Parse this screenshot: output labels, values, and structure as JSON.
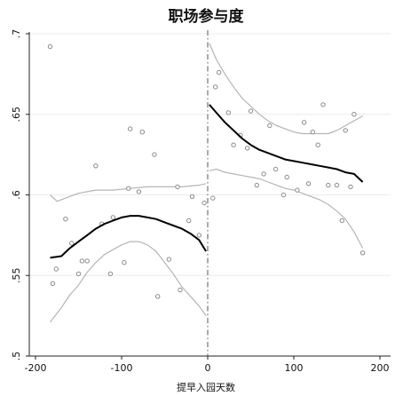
{
  "chart_data": {
    "type": "scatter",
    "title": "职场参与度",
    "xlabel": "提早入园天数",
    "ylabel": "",
    "xlim": [
      -200,
      200
    ],
    "ylim": [
      0.5,
      0.7
    ],
    "x_ticks": [
      -200,
      -100,
      0,
      100,
      200
    ],
    "x_tick_labels": [
      "-200",
      "-100",
      "0",
      "100",
      "200"
    ],
    "y_ticks": [
      0.5,
      0.55,
      0.6,
      0.65,
      0.7
    ],
    "y_tick_labels": [
      ".5",
      ".55",
      ".6",
      ".65",
      ".7"
    ],
    "cutoff_x": 0,
    "grid": true,
    "colors": {
      "points": "#8a8a8a",
      "fit": "#000000",
      "ci": "#b5b5b5",
      "cutoff": "#555555"
    },
    "points": [
      {
        "x": -183,
        "y": 0.692
      },
      {
        "x": -180,
        "y": 0.545
      },
      {
        "x": -176,
        "y": 0.554
      },
      {
        "x": -165,
        "y": 0.585
      },
      {
        "x": -158,
        "y": 0.57
      },
      {
        "x": -150,
        "y": 0.551
      },
      {
        "x": -146,
        "y": 0.559
      },
      {
        "x": -140,
        "y": 0.559
      },
      {
        "x": -130,
        "y": 0.618
      },
      {
        "x": -123,
        "y": 0.582
      },
      {
        "x": -113,
        "y": 0.551
      },
      {
        "x": -110,
        "y": 0.586
      },
      {
        "x": -97,
        "y": 0.558
      },
      {
        "x": -92,
        "y": 0.604
      },
      {
        "x": -90,
        "y": 0.641
      },
      {
        "x": -80,
        "y": 0.602
      },
      {
        "x": -76,
        "y": 0.639
      },
      {
        "x": -62,
        "y": 0.625
      },
      {
        "x": -58,
        "y": 0.537
      },
      {
        "x": -45,
        "y": 0.56
      },
      {
        "x": -35,
        "y": 0.605
      },
      {
        "x": -32,
        "y": 0.541
      },
      {
        "x": -22,
        "y": 0.584
      },
      {
        "x": -18,
        "y": 0.599
      },
      {
        "x": -10,
        "y": 0.575
      },
      {
        "x": -4,
        "y": 0.595
      },
      {
        "x": 6,
        "y": 0.598
      },
      {
        "x": 9,
        "y": 0.667
      },
      {
        "x": 13,
        "y": 0.676
      },
      {
        "x": 24,
        "y": 0.651
      },
      {
        "x": 30,
        "y": 0.631
      },
      {
        "x": 38,
        "y": 0.637
      },
      {
        "x": 46,
        "y": 0.629
      },
      {
        "x": 50,
        "y": 0.652
      },
      {
        "x": 57,
        "y": 0.606
      },
      {
        "x": 65,
        "y": 0.613
      },
      {
        "x": 72,
        "y": 0.643
      },
      {
        "x": 79,
        "y": 0.616
      },
      {
        "x": 88,
        "y": 0.6
      },
      {
        "x": 92,
        "y": 0.611
      },
      {
        "x": 104,
        "y": 0.603
      },
      {
        "x": 112,
        "y": 0.645
      },
      {
        "x": 117,
        "y": 0.607
      },
      {
        "x": 122,
        "y": 0.639
      },
      {
        "x": 128,
        "y": 0.631
      },
      {
        "x": 134,
        "y": 0.656
      },
      {
        "x": 140,
        "y": 0.606
      },
      {
        "x": 150,
        "y": 0.606
      },
      {
        "x": 156,
        "y": 0.584
      },
      {
        "x": 160,
        "y": 0.64
      },
      {
        "x": 166,
        "y": 0.605
      },
      {
        "x": 170,
        "y": 0.65
      },
      {
        "x": 180,
        "y": 0.564
      }
    ],
    "series": [
      {
        "role": "fit-left",
        "x": [
          -183,
          -170,
          -160,
          -150,
          -140,
          -130,
          -120,
          -110,
          -100,
          -90,
          -80,
          -70,
          -60,
          -50,
          -40,
          -30,
          -20,
          -10,
          -2
        ],
        "y": [
          0.561,
          0.562,
          0.567,
          0.571,
          0.575,
          0.579,
          0.582,
          0.584,
          0.586,
          0.587,
          0.587,
          0.586,
          0.585,
          0.583,
          0.581,
          0.579,
          0.576,
          0.572,
          0.565
        ]
      },
      {
        "role": "ci-upper-left",
        "x": [
          -183,
          -175,
          -165,
          -150,
          -130,
          -110,
          -90,
          -70,
          -50,
          -30,
          -10,
          -2
        ],
        "y": [
          0.6,
          0.596,
          0.598,
          0.601,
          0.603,
          0.603,
          0.604,
          0.605,
          0.605,
          0.605,
          0.606,
          0.607
        ]
      },
      {
        "role": "ci-lower-left",
        "x": [
          -183,
          -170,
          -160,
          -150,
          -140,
          -130,
          -120,
          -110,
          -100,
          -90,
          -80,
          -70,
          -60,
          -50,
          -40,
          -30,
          -20,
          -10,
          -2
        ],
        "y": [
          0.521,
          0.53,
          0.538,
          0.544,
          0.552,
          0.558,
          0.563,
          0.566,
          0.569,
          0.571,
          0.571,
          0.569,
          0.565,
          0.558,
          0.551,
          0.543,
          0.537,
          0.531,
          0.525
        ]
      },
      {
        "role": "fit-right",
        "x": [
          2,
          10,
          20,
          30,
          40,
          50,
          60,
          70,
          80,
          90,
          100,
          110,
          120,
          130,
          140,
          150,
          160,
          170,
          180
        ],
        "y": [
          0.656,
          0.651,
          0.645,
          0.64,
          0.635,
          0.631,
          0.628,
          0.626,
          0.624,
          0.622,
          0.621,
          0.62,
          0.619,
          0.618,
          0.617,
          0.616,
          0.614,
          0.613,
          0.608
        ]
      },
      {
        "role": "ci-upper-right",
        "x": [
          2,
          10,
          20,
          30,
          40,
          50,
          60,
          70,
          80,
          90,
          100,
          110,
          120,
          130,
          140,
          150,
          160,
          170,
          180
        ],
        "y": [
          0.694,
          0.684,
          0.675,
          0.667,
          0.66,
          0.655,
          0.65,
          0.646,
          0.643,
          0.641,
          0.639,
          0.638,
          0.638,
          0.638,
          0.638,
          0.64,
          0.643,
          0.646,
          0.649
        ]
      },
      {
        "role": "ci-lower-right",
        "x": [
          2,
          10,
          20,
          30,
          40,
          50,
          60,
          70,
          80,
          90,
          100,
          110,
          120,
          130,
          140,
          150,
          160,
          170,
          180
        ],
        "y": [
          0.615,
          0.616,
          0.614,
          0.613,
          0.612,
          0.611,
          0.61,
          0.608,
          0.606,
          0.604,
          0.603,
          0.601,
          0.599,
          0.597,
          0.594,
          0.59,
          0.585,
          0.577,
          0.567
        ]
      }
    ]
  }
}
